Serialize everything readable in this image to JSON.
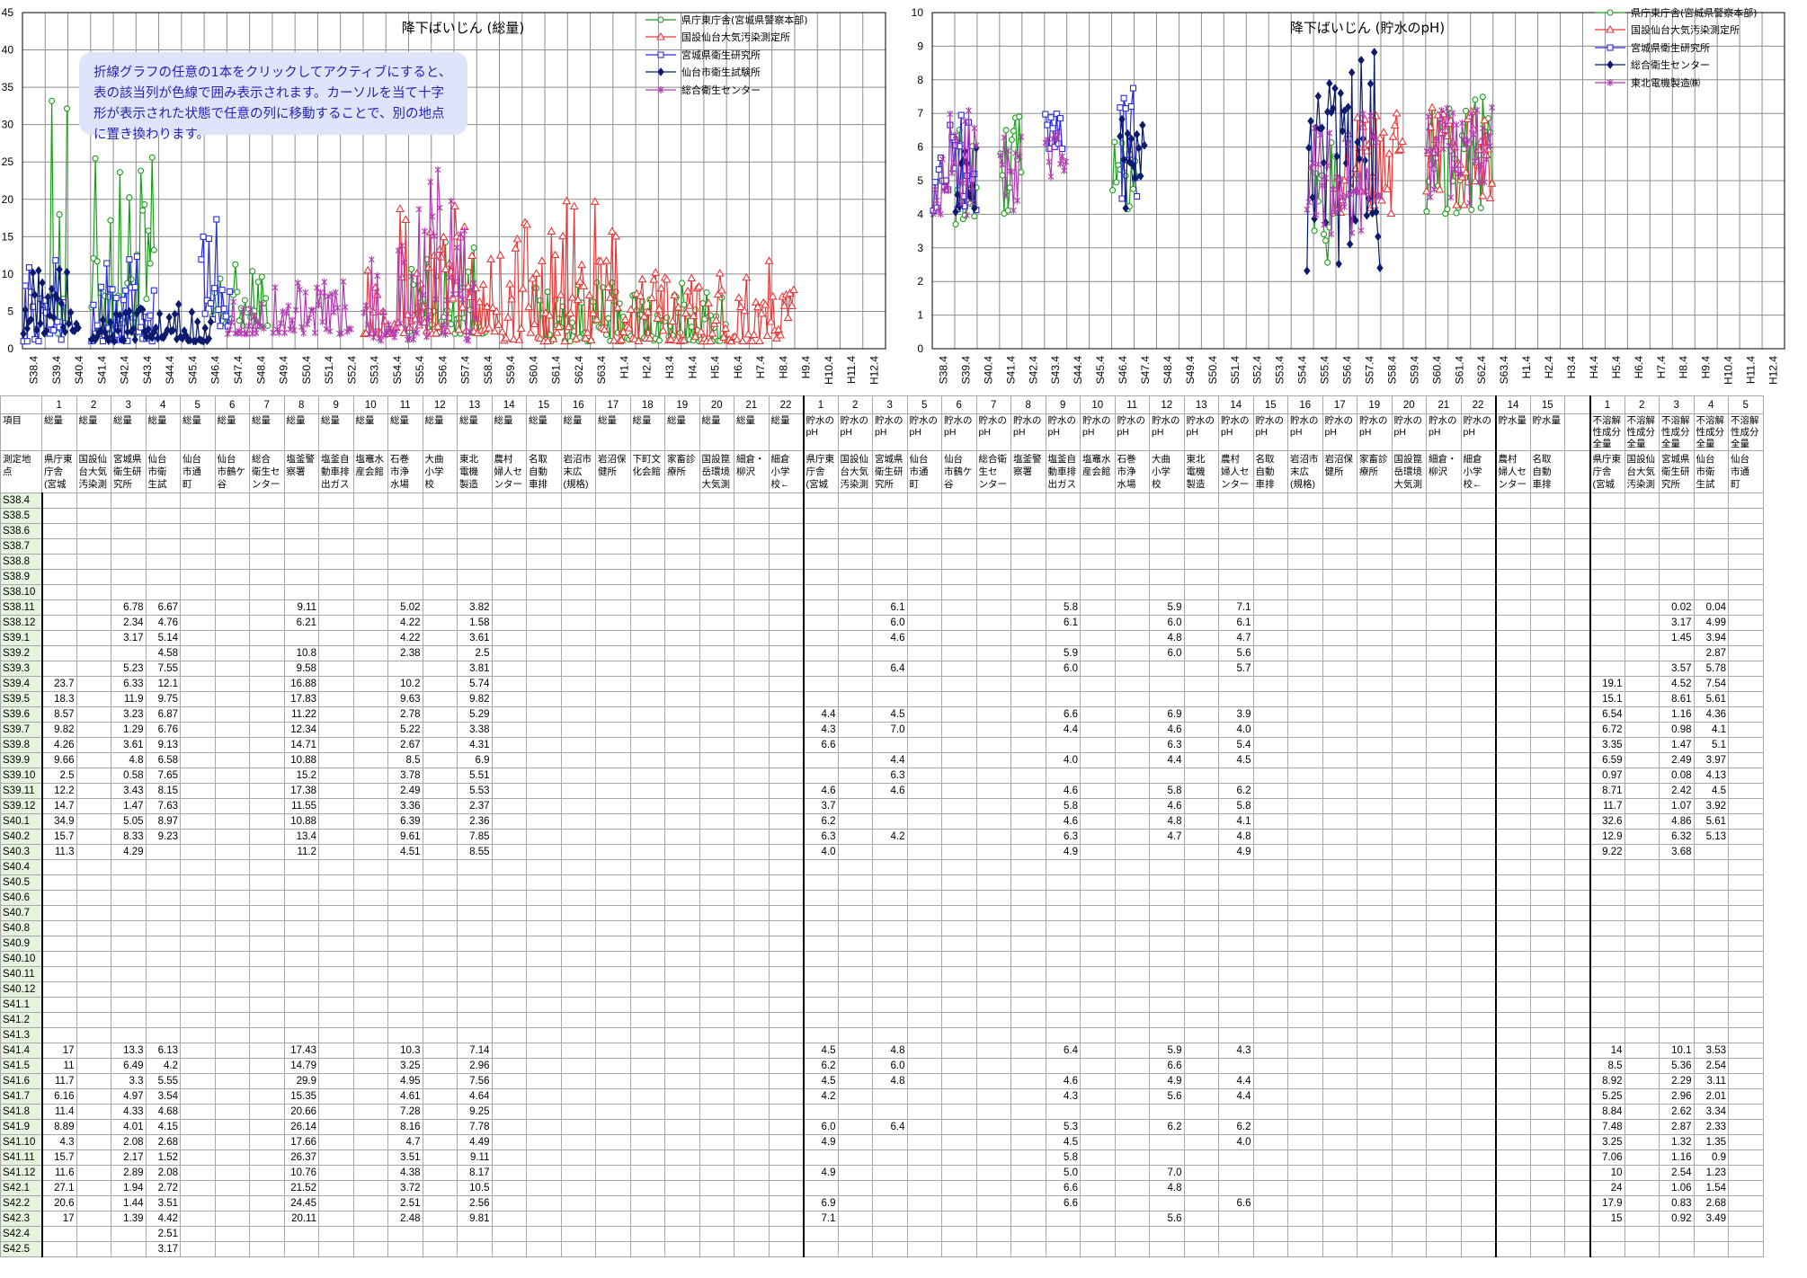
{
  "chart_data": [
    {
      "type": "line",
      "title": "降下ばいじん (総量)",
      "ylim": [
        0,
        45
      ],
      "yticks": [
        0,
        5,
        10,
        15,
        20,
        25,
        30,
        35,
        40,
        45
      ],
      "xticks": [
        "S38.4",
        "S39.4",
        "S40.4",
        "S41.4",
        "S42.4",
        "S43.4",
        "S44.4",
        "S45.4",
        "S46.4",
        "S47.4",
        "S48.4",
        "S49.4",
        "S50.4",
        "S51.4",
        "S52.4",
        "S53.4",
        "S54.4",
        "S55.4",
        "S56.4",
        "S57.4",
        "S58.4",
        "S59.4",
        "S60.4",
        "S61.4",
        "S62.4",
        "S63.4",
        "H1.4",
        "H2.4",
        "H3.4",
        "H4.4",
        "H5.4",
        "H6.4",
        "H7.4",
        "H8.4",
        "H9.4",
        "H10.4",
        "H11.4",
        "H12.4"
      ],
      "series": [
        {
          "name": "県庁東庁舎(宮城県警察本部)",
          "color": "#1a9e1a",
          "marker": "circle"
        },
        {
          "name": "国設仙台大気汚染測定所",
          "color": "#e63a3a",
          "marker": "triangle"
        },
        {
          "name": "宮城県衛生研究所",
          "color": "#2a2ae0",
          "marker": "square"
        },
        {
          "name": "仙台市衛生試験所",
          "color": "#0a1a6e",
          "marker": "diamond"
        },
        {
          "name": "総合衛生センター",
          "color": "#b03ab0",
          "marker": "star"
        }
      ]
    },
    {
      "type": "line",
      "title": "降下ばいじん (貯水のpH)",
      "ylim": [
        0,
        10
      ],
      "yticks": [
        0,
        1,
        2,
        3,
        4,
        5,
        6,
        7,
        8,
        9,
        10
      ],
      "xticks": [
        "S38.4",
        "S39.4",
        "S40.4",
        "S41.4",
        "S42.4",
        "S43.4",
        "S44.4",
        "S45.4",
        "S46.4",
        "S47.4",
        "S48.4",
        "S49.4",
        "S50.4",
        "S51.4",
        "S52.4",
        "S53.4",
        "S54.4",
        "S55.4",
        "S56.4",
        "S57.4",
        "S58.4",
        "S59.4",
        "S60.4",
        "S61.4",
        "S62.4",
        "S63.4",
        "H1.4",
        "H2.4",
        "H3.4",
        "H4.4",
        "H5.4",
        "H6.4",
        "H7.4",
        "H8.4",
        "H9.4",
        "H10.4",
        "H11.4",
        "H12.4"
      ],
      "series": [
        {
          "name": "県庁東庁舎(宮城県警察本部)",
          "color": "#1a9e1a",
          "marker": "circle"
        },
        {
          "name": "国設仙台大気汚染測定所",
          "color": "#e63a3a",
          "marker": "triangle"
        },
        {
          "name": "宮城県衛生研究所",
          "color": "#2a2ae0",
          "marker": "square"
        },
        {
          "name": "総合衛生センター",
          "color": "#0a1a6e",
          "marker": "diamond"
        },
        {
          "name": "東北電機製造㈱",
          "color": "#b03ab0",
          "marker": "star"
        }
      ]
    }
  ],
  "note": "折線グラフの任意の1本をクリックしてアクティブにすると、表の該当列が色線で囲み表示されます。カーソルを当て十字形が表示された状態で任意の列に移動することで、別の地点に置き換わります。",
  "table": {
    "col_numbers": [
      "",
      "1",
      "2",
      "3",
      "4",
      "5",
      "6",
      "7",
      "8",
      "9",
      "10",
      "11",
      "12",
      "13",
      "14",
      "15",
      "16",
      "17",
      "18",
      "19",
      "20",
      "21",
      "22",
      "1",
      "2",
      "3",
      "5",
      "6",
      "7",
      "8",
      "9",
      "10",
      "11",
      "12",
      "13",
      "14",
      "15",
      "16",
      "17",
      "19",
      "20",
      "21",
      "22",
      "14",
      "15",
      "",
      "1",
      "2",
      "3",
      "4",
      "5"
    ],
    "item_label": "項目",
    "items": [
      "",
      "総量",
      "総量",
      "総量",
      "総量",
      "総量",
      "総量",
      "総量",
      "総量",
      "総量",
      "総量",
      "総量",
      "総量",
      "総量",
      "総量",
      "総量",
      "総量",
      "総量",
      "総量",
      "総量",
      "総量",
      "総量",
      "総量",
      "貯水の pH",
      "貯水の pH",
      "貯水の pH",
      "貯水の pH",
      "貯水の pH",
      "貯水の pH",
      "貯水の pH",
      "貯水の pH",
      "貯水の pH",
      "貯水の pH",
      "貯水の pH",
      "貯水の pH",
      "貯水の pH",
      "貯水の pH",
      "貯水の pH",
      "貯水の pH",
      "貯水の pH",
      "貯水の pH",
      "貯水の pH",
      "貯水の pH",
      "貯水量",
      "貯水量",
      "",
      "不溶解 性成分 全量",
      "不溶解 性成分 全量",
      "不溶解 性成分 全量",
      "不溶解 性成分 全量",
      "不溶解 性成分 全量"
    ],
    "site_label": "測定地点",
    "sites": [
      "",
      "県庁東 庁舎 (宮城",
      "国設仙 台大気 汚染測",
      "宮城県 衛生研 究所",
      "仙台 市衛 生試",
      "仙台 市通 町",
      "仙台 市鶴ケ 谷",
      "総合 衛生セ ンター",
      "塩釜警 察署",
      "塩釜自 動車排 出ガス",
      "塩竈水 産会館",
      "石巻 市浄 水場",
      "大曲 小学 校",
      "東北 電機 製造",
      "農村 婦人セ ンター",
      "名取 自動 車排",
      "岩沼市 末広 (規格)",
      "岩沼保 健所",
      "下町文 化会館",
      "家畜診 療所",
      "国設箟 岳環境 大気測",
      "細倉・ 柳沢",
      "細倉 小学 校←",
      "県庁東 庁舎 (宮城",
      "国設仙 台大気 汚染測",
      "宮城県 衛生研 究所",
      "仙台 市通 町",
      "仙台 市鶴ケ 谷",
      "総合衛 生セ ンター",
      "塩釜警 察署",
      "塩釜自 動車排 出ガス",
      "塩竈水 産会館",
      "石巻 市浄 水場",
      "大曲 小学 校",
      "東北 電機 製造",
      "農村 婦人セ ンター",
      "名取 自動 車排",
      "岩沼市 末広 (規格)",
      "岩沼保 健所",
      "家畜診 療所",
      "国設箟 岳環境 大気測",
      "細倉・ 柳沢",
      "細倉 小学 校←",
      "農村 婦人セ ンター",
      "名取 自動 車排",
      "",
      "県庁東 庁舎 (宮城",
      "国設仙 台大気 汚染測",
      "宮城県 衛生研 究所",
      "仙台 市衛 生試",
      "仙台 市通 町"
    ],
    "rows": [
      [
        "S38.4"
      ],
      [
        "S38.5"
      ],
      [
        "S38.6"
      ],
      [
        "S38.7"
      ],
      [
        "S38.8"
      ],
      [
        "S38.9"
      ],
      [
        "S38.10"
      ],
      [
        "S38.11",
        {
          "3": "6.78",
          "4": "6.67",
          "8": "9.11",
          "11": "5.02",
          "13": "3.82",
          "25": "6.1",
          "30": "5.8",
          "33": "5.9",
          "35": "7.1",
          "48": "0.02",
          "49": "0.04"
        }
      ],
      [
        "S38.12",
        {
          "3": "2.34",
          "4": "4.76",
          "8": "6.21",
          "11": "4.22",
          "13": "1.58",
          "25": "6.0",
          "30": "6.1",
          "33": "6.0",
          "35": "6.1",
          "48": "3.17",
          "49": "4.99"
        }
      ],
      [
        "S39.1",
        {
          "3": "3.17",
          "4": "5.14",
          "11": "4.22",
          "13": "3.61",
          "25": "4.6",
          "33": "4.8",
          "35": "4.7",
          "48": "1.45",
          "49": "3.94"
        }
      ],
      [
        "S39.2",
        {
          "4": "4.58",
          "8": "10.8",
          "11": "2.38",
          "13": "2.5",
          "30": "5.9",
          "33": "6.0",
          "35": "5.6",
          "49": "2.87"
        }
      ],
      [
        "S39.3",
        {
          "3": "5.23",
          "4": "7.55",
          "8": "9.58",
          "13": "3.81",
          "25": "6.4",
          "30": "6.0",
          "35": "5.7",
          "48": "3.57",
          "49": "5.78"
        }
      ],
      [
        "S39.4",
        {
          "1": "23.7",
          "3": "6.33",
          "4": "12.1",
          "8": "16.88",
          "11": "10.2",
          "13": "5.74",
          "46": "19.1",
          "48": "4.52",
          "49": "7.54"
        }
      ],
      [
        "S39.5",
        {
          "1": "18.3",
          "3": "11.9",
          "4": "9.75",
          "8": "17.83",
          "11": "9.63",
          "13": "9.82",
          "46": "15.1",
          "48": "8.61",
          "49": "5.61"
        }
      ],
      [
        "S39.6",
        {
          "1": "8.57",
          "3": "3.23",
          "4": "6.87",
          "8": "11.22",
          "11": "2.78",
          "13": "5.29",
          "23": "4.4",
          "25": "4.5",
          "30": "6.6",
          "33": "6.9",
          "35": "3.9",
          "46": "6.54",
          "48": "1.16",
          "49": "4.36"
        }
      ],
      [
        "S39.7",
        {
          "1": "9.82",
          "3": "1.29",
          "4": "6.76",
          "8": "12.34",
          "11": "5.22",
          "13": "3.38",
          "23": "4.3",
          "25": "7.0",
          "30": "4.4",
          "33": "4.6",
          "35": "4.0",
          "46": "6.72",
          "48": "0.98",
          "49": "4.1"
        }
      ],
      [
        "S39.8",
        {
          "1": "4.26",
          "3": "3.61",
          "4": "9.13",
          "8": "14.71",
          "11": "2.67",
          "13": "4.31",
          "23": "6.6",
          "33": "6.3",
          "35": "5.4",
          "46": "3.35",
          "48": "1.47",
          "49": "5.1"
        }
      ],
      [
        "S39.9",
        {
          "1": "9.66",
          "3": "4.8",
          "4": "6.58",
          "8": "10.88",
          "11": "8.5",
          "13": "6.9",
          "25": "4.4",
          "30": "4.0",
          "33": "4.4",
          "35": "4.5",
          "46": "6.59",
          "48": "2.49",
          "49": "3.97"
        }
      ],
      [
        "S39.10",
        {
          "1": "2.5",
          "3": "0.58",
          "4": "7.65",
          "8": "15.2",
          "11": "3.78",
          "13": "5.51",
          "25": "6.3",
          "46": "0.97",
          "48": "0.08",
          "49": "4.13"
        }
      ],
      [
        "S39.11",
        {
          "1": "12.2",
          "3": "3.43",
          "4": "8.15",
          "8": "17.38",
          "11": "2.49",
          "13": "5.53",
          "23": "4.6",
          "25": "4.6",
          "30": "4.6",
          "33": "5.8",
          "35": "6.2",
          "46": "8.71",
          "48": "2.42",
          "49": "4.5"
        }
      ],
      [
        "S39.12",
        {
          "1": "14.7",
          "3": "1.47",
          "4": "7.63",
          "8": "11.55",
          "11": "3.36",
          "13": "2.37",
          "23": "3.7",
          "30": "5.8",
          "33": "4.6",
          "35": "5.8",
          "46": "11.7",
          "48": "1.07",
          "49": "3.92"
        }
      ],
      [
        "S40.1",
        {
          "1": "34.9",
          "3": "5.05",
          "4": "8.97",
          "8": "10.88",
          "11": "6.39",
          "13": "2.36",
          "23": "6.2",
          "30": "4.6",
          "33": "4.8",
          "35": "4.1",
          "46": "32.6",
          "48": "4.86",
          "49": "5.61"
        }
      ],
      [
        "S40.2",
        {
          "1": "15.7",
          "3": "8.33",
          "4": "9.23",
          "8": "13.4",
          "11": "9.61",
          "13": "7.85",
          "23": "6.3",
          "25": "4.2",
          "30": "6.3",
          "33": "4.7",
          "35": "4.8",
          "46": "12.9",
          "48": "6.32",
          "49": "5.13"
        }
      ],
      [
        "S40.3",
        {
          "1": "11.3",
          "3": "4.29",
          "8": "11.2",
          "11": "4.51",
          "13": "8.55",
          "23": "4.0",
          "30": "4.9",
          "35": "4.9",
          "46": "9.22",
          "48": "3.68"
        }
      ],
      [
        "S40.4"
      ],
      [
        "S40.5"
      ],
      [
        "S40.6"
      ],
      [
        "S40.7"
      ],
      [
        "S40.8"
      ],
      [
        "S40.9"
      ],
      [
        "S40.10"
      ],
      [
        "S40.11"
      ],
      [
        "S40.12"
      ],
      [
        "S41.1"
      ],
      [
        "S41.2"
      ],
      [
        "S41.3"
      ],
      [
        "S41.4",
        {
          "1": "17",
          "3": "13.3",
          "4": "6.13",
          "8": "17.43",
          "11": "10.3",
          "13": "7.14",
          "23": "4.5",
          "25": "4.8",
          "30": "6.4",
          "33": "5.9",
          "35": "4.3",
          "46": "14",
          "48": "10.1",
          "49": "3.53"
        }
      ],
      [
        "S41.5",
        {
          "1": "11",
          "3": "6.49",
          "4": "4.2",
          "8": "14.79",
          "11": "3.25",
          "13": "2.96",
          "23": "6.2",
          "25": "6.0",
          "33": "6.6",
          "46": "8.5",
          "48": "5.36",
          "49": "2.54"
        }
      ],
      [
        "S41.6",
        {
          "1": "11.7",
          "3": "3.3",
          "4": "5.55",
          "8": "29.9",
          "11": "4.95",
          "13": "7.56",
          "23": "4.5",
          "25": "4.8",
          "30": "4.6",
          "33": "4.9",
          "35": "4.4",
          "46": "8.92",
          "48": "2.29",
          "49": "3.11"
        }
      ],
      [
        "S41.7",
        {
          "1": "6.16",
          "3": "4.97",
          "4": "3.54",
          "8": "15.35",
          "11": "4.61",
          "13": "4.64",
          "23": "4.2",
          "30": "4.3",
          "33": "5.6",
          "35": "4.4",
          "46": "5.25",
          "48": "2.96",
          "49": "2.01"
        }
      ],
      [
        "S41.8",
        {
          "1": "11.4",
          "3": "4.33",
          "4": "4.68",
          "8": "20.66",
          "11": "7.28",
          "13": "9.25",
          "46": "8.84",
          "48": "2.62",
          "49": "3.34"
        }
      ],
      [
        "S41.9",
        {
          "1": "8.89",
          "3": "4.01",
          "4": "4.15",
          "8": "26.14",
          "11": "8.16",
          "13": "7.78",
          "23": "6.0",
          "25": "6.4",
          "30": "5.3",
          "33": "6.2",
          "35": "6.2",
          "46": "7.48",
          "48": "2.87",
          "49": "2.33"
        }
      ],
      [
        "S41.10",
        {
          "1": "4.3",
          "3": "2.08",
          "4": "2.68",
          "8": "17.66",
          "11": "4.7",
          "13": "4.49",
          "23": "4.9",
          "30": "4.5",
          "35": "4.0",
          "46": "3.25",
          "48": "1.32",
          "49": "1.35"
        }
      ],
      [
        "S41.11",
        {
          "1": "15.7",
          "3": "2.17",
          "4": "1.52",
          "8": "26.37",
          "11": "3.51",
          "13": "9.11",
          "30": "5.8",
          "46": "7.06",
          "48": "1.16",
          "49": "0.9"
        }
      ],
      [
        "S41.12",
        {
          "1": "11.6",
          "3": "2.89",
          "4": "2.08",
          "8": "10.76",
          "11": "4.38",
          "13": "8.17",
          "23": "4.9",
          "30": "5.0",
          "33": "7.0",
          "46": "10",
          "48": "2.54",
          "49": "1.23"
        }
      ],
      [
        "S42.1",
        {
          "1": "27.1",
          "3": "1.94",
          "4": "2.72",
          "8": "21.52",
          "11": "3.72",
          "13": "10.5",
          "30": "6.6",
          "33": "4.8",
          "46": "24",
          "48": "1.06",
          "49": "1.54"
        }
      ],
      [
        "S42.2",
        {
          "1": "20.6",
          "3": "1.44",
          "4": "3.51",
          "8": "24.45",
          "11": "2.51",
          "13": "2.56",
          "23": "6.9",
          "30": "6.6",
          "35": "6.6",
          "46": "17.9",
          "48": "0.83",
          "49": "2.68"
        }
      ],
      [
        "S42.3",
        {
          "1": "17",
          "3": "1.39",
          "4": "4.42",
          "8": "20.11",
          "11": "2.48",
          "13": "9.81",
          "23": "7.1",
          "33": "5.6",
          "46": "15",
          "48": "0.92",
          "49": "3.49"
        }
      ],
      [
        "S42.4",
        {
          "4": "2.51"
        }
      ],
      [
        "S42.5",
        {
          "4": "3.17"
        }
      ]
    ]
  }
}
